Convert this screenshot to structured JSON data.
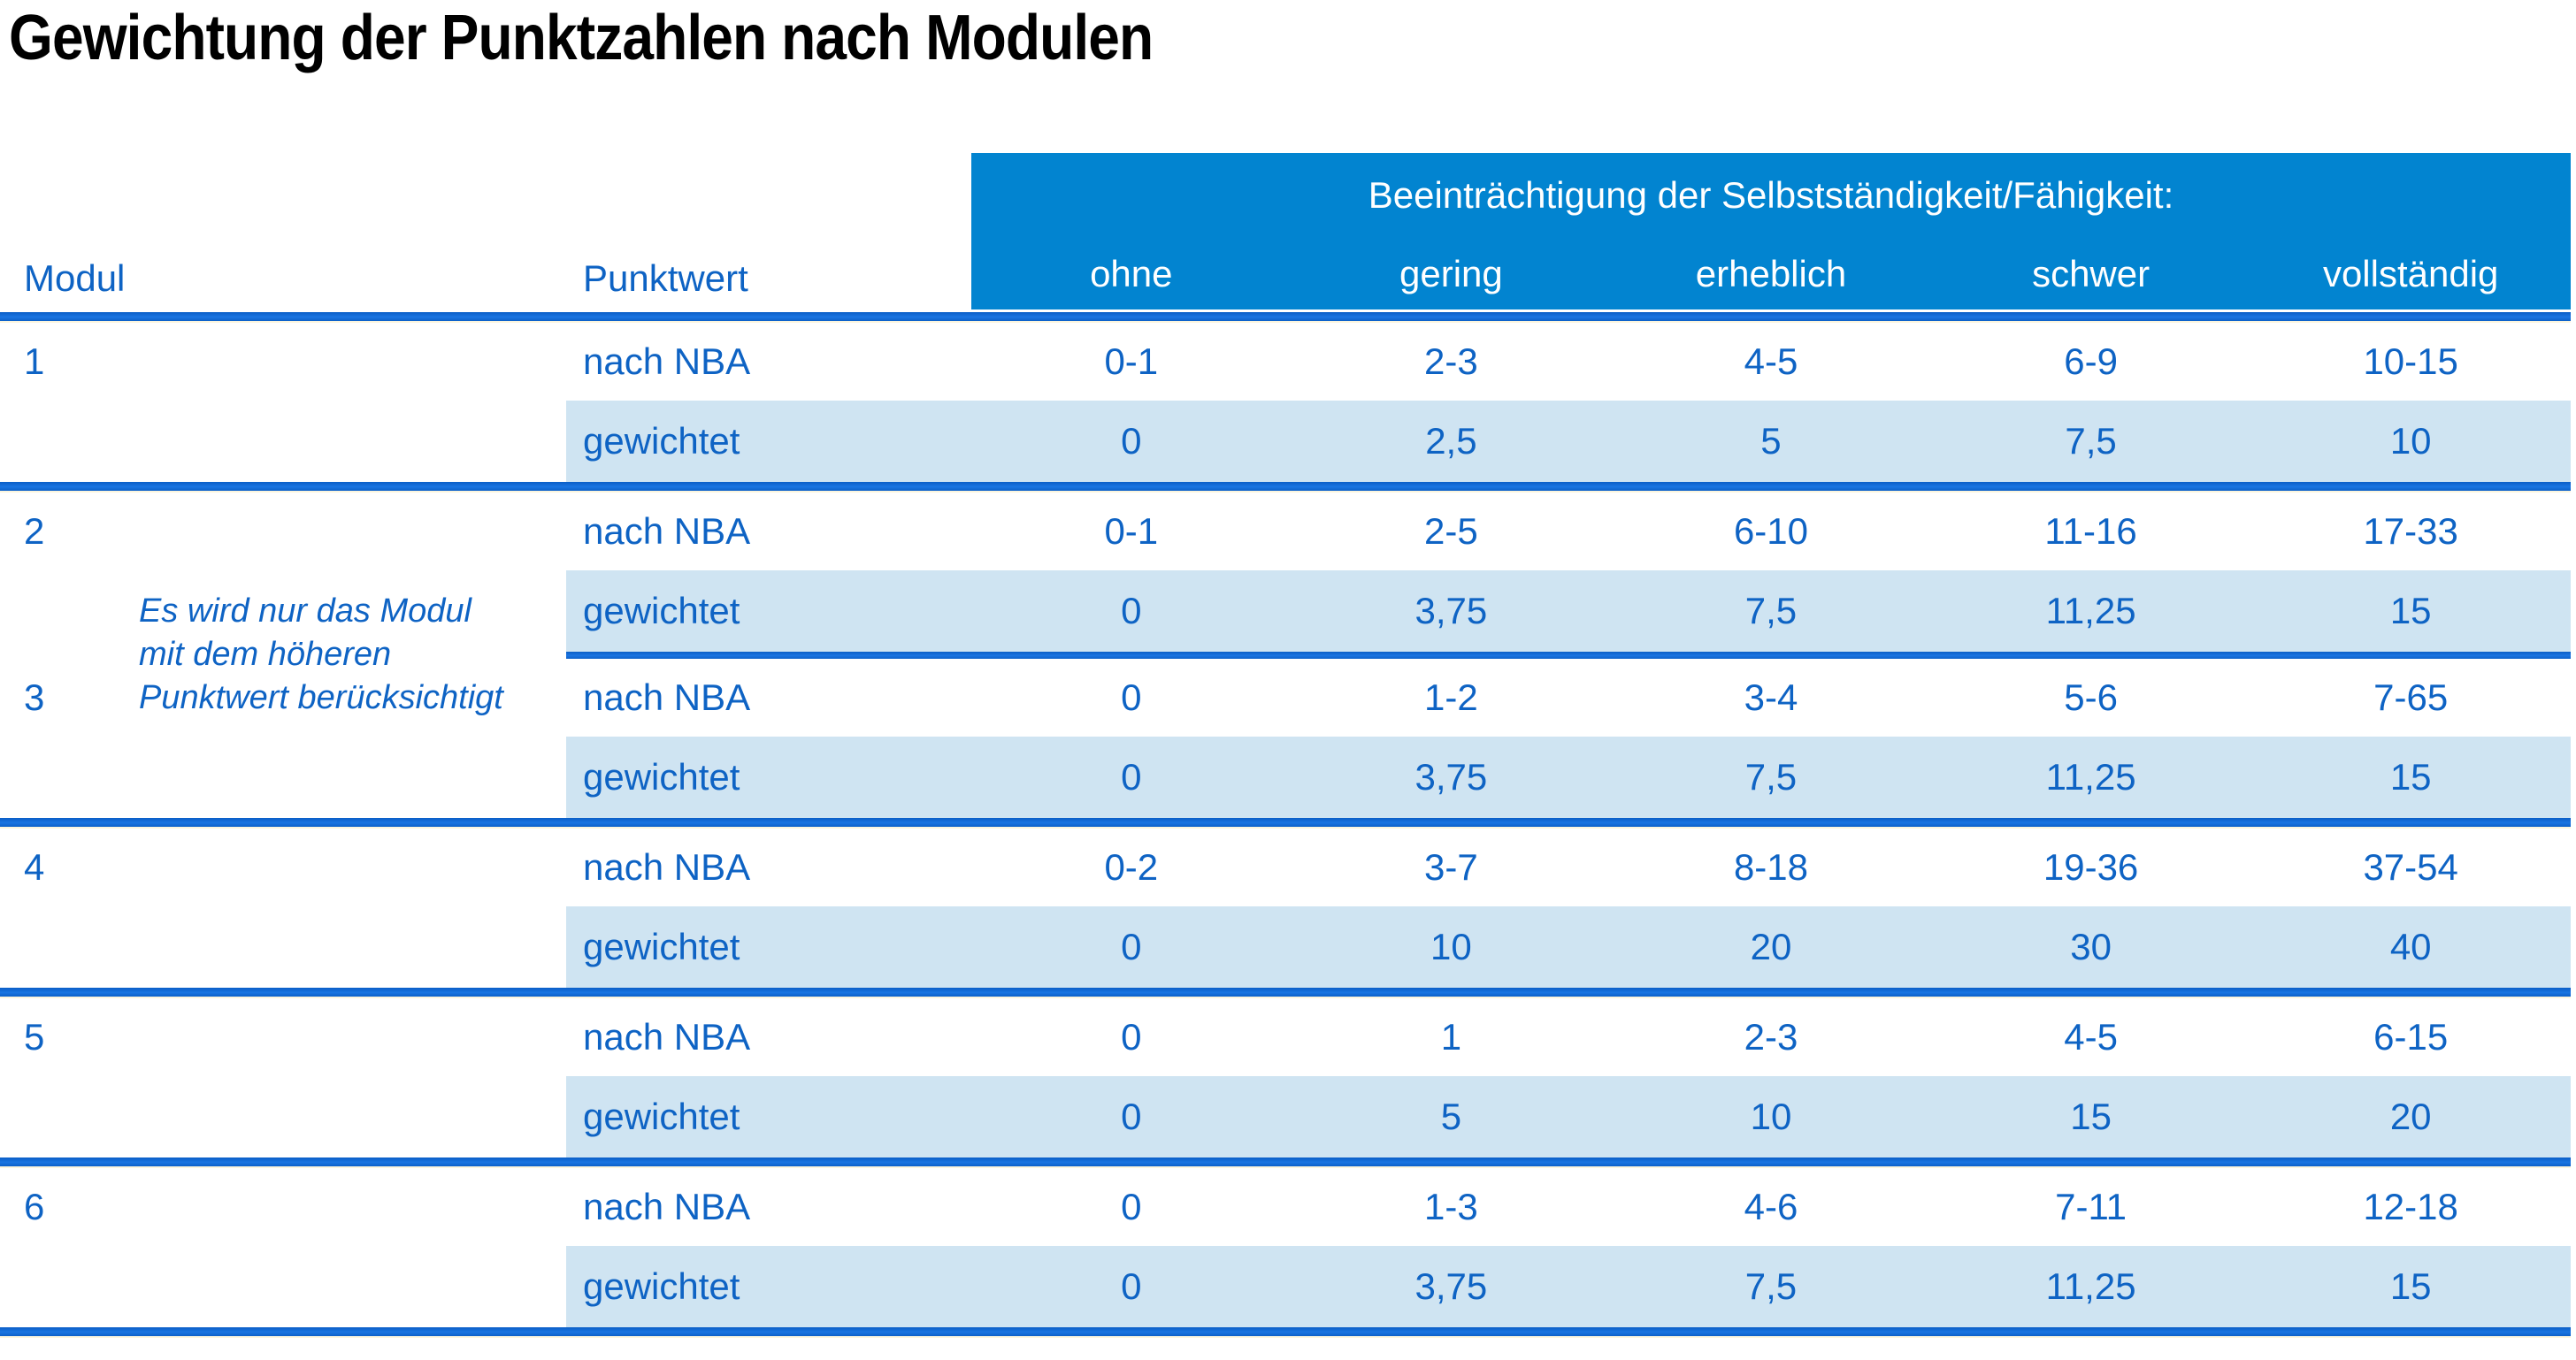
{
  "title": "Gewichtung der Punktzahlen nach Modulen",
  "colors": {
    "header_band_bg": "#0284d0",
    "rule_blue": "#0d62cd",
    "shaded_row_bg": "#cfe4f2",
    "text_blue": "#0e63c4",
    "title_color": "#000000"
  },
  "table": {
    "corner": {
      "modul": "Modul",
      "punktwert": "Punktwert"
    },
    "band_title": "Beeinträchtigung der Selbstständigkeit/Fähigkeit:",
    "severities": [
      "ohne",
      "gering",
      "erheblich",
      "schwer",
      "vollständig"
    ],
    "note_lines": [
      "Es wird nur das Modul",
      "mit dem höheren",
      "Punktwert berücksichtigt"
    ],
    "groups": [
      {
        "modul": "1",
        "rows": [
          {
            "label": "nach NBA",
            "values": [
              "0-1",
              "2-3",
              "4-5",
              "6-9",
              "10-15"
            ]
          },
          {
            "label": "gewichtet",
            "values": [
              "0",
              "2,5",
              "5",
              "7,5",
              "10"
            ]
          }
        ]
      },
      {
        "modul": "2",
        "rows": [
          {
            "label": "nach NBA",
            "values": [
              "0-1",
              "2-5",
              "6-10",
              "11-16",
              "17-33"
            ]
          },
          {
            "label": "gewichtet",
            "values": [
              "0",
              "3,75",
              "7,5",
              "11,25",
              "15"
            ]
          }
        ]
      },
      {
        "modul": "3",
        "rows": [
          {
            "label": "nach NBA",
            "values": [
              "0",
              "1-2",
              "3-4",
              "5-6",
              "7-65"
            ]
          },
          {
            "label": "gewichtet",
            "values": [
              "0",
              "3,75",
              "7,5",
              "11,25",
              "15"
            ]
          }
        ]
      },
      {
        "modul": "4",
        "rows": [
          {
            "label": "nach NBA",
            "values": [
              "0-2",
              "3-7",
              "8-18",
              "19-36",
              "37-54"
            ]
          },
          {
            "label": "gewichtet",
            "values": [
              "0",
              "10",
              "20",
              "30",
              "40"
            ]
          }
        ]
      },
      {
        "modul": "5",
        "rows": [
          {
            "label": "nach NBA",
            "values": [
              "0",
              "1",
              "2-3",
              "4-5",
              "6-15"
            ]
          },
          {
            "label": "gewichtet",
            "values": [
              "0",
              "5",
              "10",
              "15",
              "20"
            ]
          }
        ]
      },
      {
        "modul": "6",
        "rows": [
          {
            "label": "nach NBA",
            "values": [
              "0",
              "1-3",
              "4-6",
              "7-11",
              "12-18"
            ]
          },
          {
            "label": "gewichtet",
            "values": [
              "0",
              "3,75",
              "7,5",
              "11,25",
              "15"
            ]
          }
        ]
      }
    ]
  }
}
